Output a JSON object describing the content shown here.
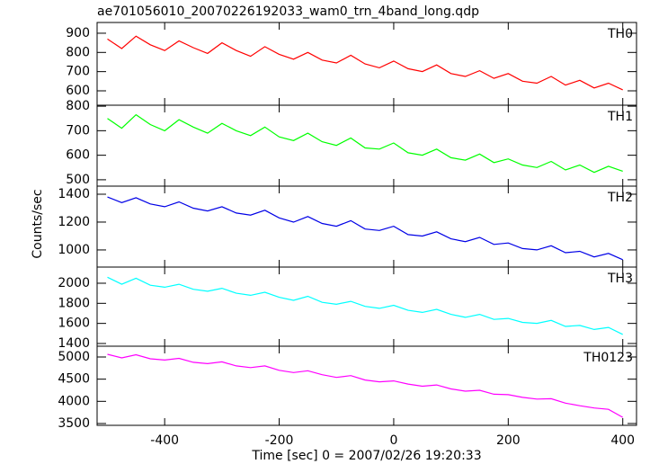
{
  "chart_data": [
    {
      "type": "line",
      "title": "ae701056010_20070226192033_wam0_trn_4band_long.qdp",
      "label": "TH0",
      "color": "#ff0000",
      "x": [
        -500,
        -475,
        -450,
        -425,
        -400,
        -375,
        -350,
        -325,
        -300,
        -275,
        -250,
        -225,
        -200,
        -175,
        -150,
        -125,
        -100,
        -75,
        -50,
        -25,
        0,
        25,
        50,
        75,
        100,
        125,
        150,
        175,
        200,
        225,
        250,
        275,
        300,
        325,
        350,
        375,
        400
      ],
      "values": [
        870,
        820,
        885,
        840,
        810,
        860,
        825,
        795,
        850,
        810,
        780,
        830,
        790,
        765,
        800,
        760,
        745,
        785,
        740,
        720,
        755,
        715,
        700,
        735,
        690,
        675,
        705,
        665,
        690,
        650,
        640,
        675,
        630,
        655,
        615,
        640,
        605
      ],
      "xlim": [
        -518,
        424
      ],
      "ylim": [
        525,
        956
      ],
      "yticks": [
        600,
        700,
        800,
        900
      ]
    },
    {
      "type": "line",
      "label": "TH1",
      "color": "#00ff00",
      "x": [
        -500,
        -475,
        -450,
        -425,
        -400,
        -375,
        -350,
        -325,
        -300,
        -275,
        -250,
        -225,
        -200,
        -175,
        -150,
        -125,
        -100,
        -75,
        -50,
        -25,
        0,
        25,
        50,
        75,
        100,
        125,
        150,
        175,
        200,
        225,
        250,
        275,
        300,
        325,
        350,
        375,
        400
      ],
      "values": [
        750,
        710,
        765,
        725,
        700,
        745,
        715,
        690,
        730,
        700,
        680,
        715,
        675,
        660,
        690,
        655,
        640,
        670,
        630,
        625,
        650,
        610,
        600,
        625,
        590,
        580,
        605,
        570,
        585,
        560,
        550,
        575,
        540,
        560,
        530,
        555,
        535
      ],
      "xlim": [
        -518,
        424
      ],
      "ylim": [
        474,
        804
      ],
      "yticks": [
        500,
        600,
        700,
        800
      ]
    },
    {
      "type": "line",
      "label": "TH2",
      "color": "#0000e6",
      "ylabel": "Counts/sec",
      "x": [
        -500,
        -475,
        -450,
        -425,
        -400,
        -375,
        -350,
        -325,
        -300,
        -275,
        -250,
        -225,
        -200,
        -175,
        -150,
        -125,
        -100,
        -75,
        -50,
        -25,
        0,
        25,
        50,
        75,
        100,
        125,
        150,
        175,
        200,
        225,
        250,
        275,
        300,
        325,
        350,
        375,
        400
      ],
      "values": [
        1380,
        1340,
        1375,
        1330,
        1310,
        1345,
        1300,
        1280,
        1310,
        1265,
        1250,
        1285,
        1230,
        1200,
        1240,
        1190,
        1170,
        1210,
        1150,
        1140,
        1170,
        1110,
        1100,
        1130,
        1080,
        1060,
        1090,
        1040,
        1050,
        1010,
        1000,
        1030,
        980,
        990,
        950,
        975,
        930
      ],
      "xlim": [
        -518,
        424
      ],
      "ylim": [
        877,
        1458
      ],
      "yticks": [
        1000,
        1200,
        1400
      ]
    },
    {
      "type": "line",
      "label": "TH3",
      "color": "#00ffff",
      "x": [
        -500,
        -475,
        -450,
        -425,
        -400,
        -375,
        -350,
        -325,
        -300,
        -275,
        -250,
        -225,
        -200,
        -175,
        -150,
        -125,
        -100,
        -75,
        -50,
        -25,
        0,
        25,
        50,
        75,
        100,
        125,
        150,
        175,
        200,
        225,
        250,
        275,
        300,
        325,
        350,
        375,
        400
      ],
      "values": [
        2060,
        1990,
        2050,
        1980,
        1960,
        1990,
        1940,
        1920,
        1950,
        1900,
        1880,
        1910,
        1860,
        1830,
        1870,
        1810,
        1790,
        1820,
        1770,
        1750,
        1780,
        1730,
        1710,
        1740,
        1690,
        1660,
        1690,
        1640,
        1650,
        1610,
        1600,
        1630,
        1570,
        1580,
        1540,
        1560,
        1490
      ],
      "xlim": [
        -518,
        424
      ],
      "ylim": [
        1373,
        2161
      ],
      "yticks": [
        1400,
        1600,
        1800,
        2000
      ]
    },
    {
      "type": "line",
      "label": "TH0123",
      "color": "#ff00ff",
      "xlabel": "Time [sec] 0 = 2007/02/26 19:20:33",
      "x": [
        -500,
        -475,
        -450,
        -425,
        -400,
        -375,
        -350,
        -325,
        -300,
        -275,
        -250,
        -225,
        -200,
        -175,
        -150,
        -125,
        -100,
        -75,
        -50,
        -25,
        0,
        25,
        50,
        75,
        100,
        125,
        150,
        175,
        200,
        225,
        250,
        275,
        300,
        325,
        350,
        375,
        400
      ],
      "values": [
        5060,
        4980,
        5050,
        4960,
        4930,
        4970,
        4880,
        4850,
        4890,
        4800,
        4760,
        4800,
        4700,
        4650,
        4690,
        4600,
        4540,
        4580,
        4480,
        4440,
        4460,
        4390,
        4340,
        4370,
        4280,
        4230,
        4250,
        4160,
        4150,
        4090,
        4050,
        4060,
        3960,
        3900,
        3850,
        3820,
        3640
      ],
      "xlim": [
        -518,
        424
      ],
      "ylim": [
        3459,
        5243
      ],
      "yticks": [
        3500,
        4000,
        4500,
        5000
      ],
      "xticks": [
        -400,
        -200,
        0,
        200,
        400
      ]
    }
  ]
}
